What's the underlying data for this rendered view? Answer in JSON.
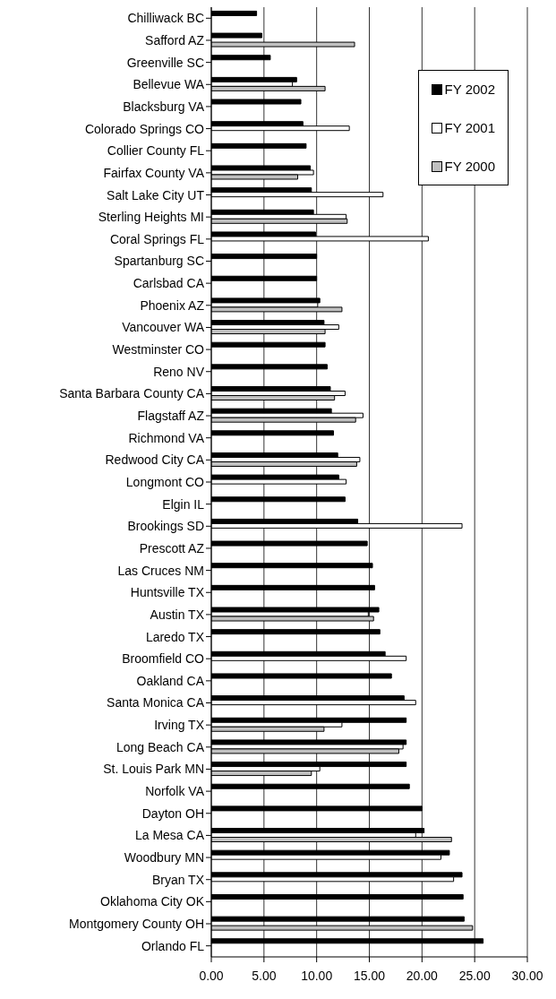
{
  "chart_data": {
    "type": "bar",
    "orientation": "horizontal",
    "categories": [
      "Chilliwack BC",
      "Safford AZ",
      "Greenville SC",
      "Bellevue WA",
      "Blacksburg VA",
      "Colorado Springs CO",
      "Collier County FL",
      "Fairfax County VA",
      "Salt Lake City UT",
      "Sterling Heights MI",
      "Coral Springs FL",
      "Spartanburg SC",
      "Carlsbad CA",
      "Phoenix AZ",
      "Vancouver WA",
      "Westminster CO",
      "Reno NV",
      "Santa Barbara County CA",
      "Flagstaff AZ",
      "Richmond VA",
      "Redwood City CA",
      "Longmont CO",
      "Elgin IL",
      "Brookings SD",
      "Prescott AZ",
      "Las Cruces NM",
      "Huntsville TX",
      "Austin TX",
      "Laredo TX",
      "Broomfield CO",
      "Oakland CA",
      "Santa Monica CA",
      "Irving TX",
      "Long Beach CA",
      "St. Louis Park MN",
      "Norfolk VA",
      "Dayton OH",
      "La Mesa CA",
      "Woodbury MN",
      "Bryan TX",
      "Oklahoma City OK",
      "Montgomery County OH",
      "Orlando FL"
    ],
    "series": [
      {
        "name": "FY 2002",
        "color": "#000000",
        "values": [
          4.3,
          4.8,
          5.6,
          8.1,
          8.5,
          8.7,
          9.0,
          9.4,
          9.5,
          9.7,
          9.9,
          10.0,
          10.0,
          10.3,
          10.7,
          10.8,
          11.0,
          11.3,
          11.4,
          11.6,
          12.0,
          12.1,
          12.7,
          13.9,
          14.8,
          15.3,
          15.5,
          15.9,
          16.0,
          16.5,
          17.1,
          18.3,
          18.5,
          18.5,
          18.5,
          18.8,
          20.0,
          20.2,
          22.6,
          23.8,
          23.9,
          24.0,
          25.8
        ]
      },
      {
        "name": "FY 2001",
        "color": "#ffffff",
        "values": [
          null,
          null,
          null,
          7.7,
          null,
          13.1,
          null,
          9.7,
          16.3,
          12.8,
          20.6,
          null,
          null,
          10.1,
          12.1,
          null,
          null,
          12.7,
          14.4,
          null,
          14.1,
          12.8,
          null,
          23.8,
          null,
          null,
          null,
          14.9,
          null,
          18.5,
          null,
          19.4,
          12.4,
          18.2,
          10.3,
          null,
          null,
          19.4,
          21.8,
          23.0,
          null,
          null,
          null
        ]
      },
      {
        "name": "FY 2000",
        "color": "#c0c0c0",
        "values": [
          null,
          13.6,
          null,
          10.8,
          null,
          null,
          null,
          8.2,
          null,
          12.9,
          null,
          null,
          null,
          12.4,
          10.8,
          null,
          null,
          11.7,
          13.7,
          null,
          13.8,
          null,
          null,
          null,
          null,
          null,
          null,
          15.4,
          null,
          null,
          null,
          null,
          10.7,
          17.8,
          9.5,
          null,
          null,
          22.8,
          null,
          null,
          null,
          24.8,
          null
        ]
      }
    ],
    "xlim": [
      0,
      30
    ],
    "xticks": [
      {
        "value": 0,
        "label": "0.00"
      },
      {
        "value": 5,
        "label": "5.00"
      },
      {
        "value": 10,
        "label": "10.00"
      },
      {
        "value": 15,
        "label": "15.00"
      },
      {
        "value": 20,
        "label": "20.00"
      },
      {
        "value": 25,
        "label": "25.00"
      },
      {
        "value": 30,
        "label": "30.00"
      }
    ],
    "grid": "x",
    "legend": "top right"
  }
}
